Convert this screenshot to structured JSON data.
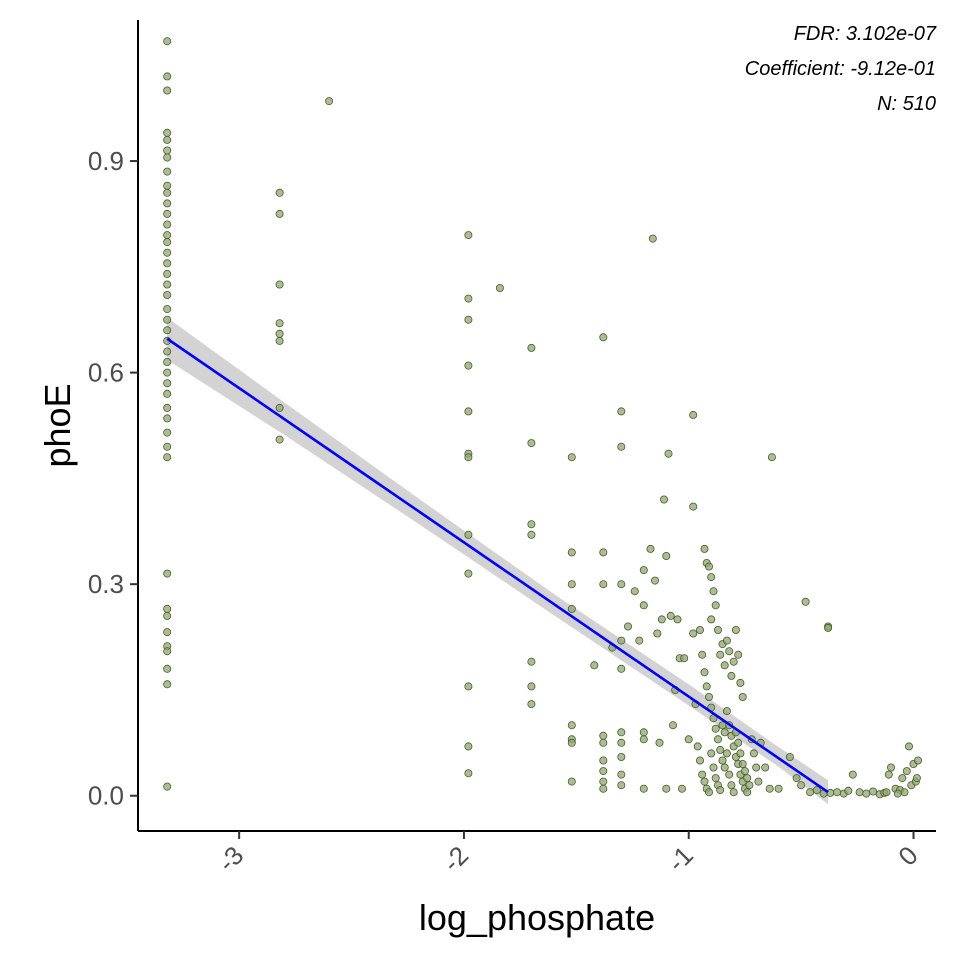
{
  "chart_data": {
    "type": "scatter",
    "xlabel": "log_phosphate",
    "ylabel": "phoE",
    "xlim": [
      -3.45,
      0.1
    ],
    "ylim": [
      -0.05,
      1.1
    ],
    "x_ticks": [
      -3,
      -2,
      -1,
      0
    ],
    "x_tick_labels": [
      "-3",
      "-2",
      "-1",
      "0"
    ],
    "y_ticks": [
      0.0,
      0.3,
      0.6,
      0.9
    ],
    "y_tick_labels": [
      "0.0",
      "0.3",
      "0.6",
      "0.9"
    ],
    "grid": false,
    "annotations": [
      "FDR: 3.102e-07",
      "Coefficient: -9.12e-01",
      "N: 510"
    ],
    "colors": {
      "point_fill": "#8fa86f",
      "point_stroke": "#4a5a2e",
      "fit_line": "#0000ff",
      "ribbon": "#c8c8c8",
      "axis": "#000000"
    },
    "fit_line": {
      "x": [
        -3.32,
        -0.38
      ],
      "y": [
        0.648,
        0.005
      ]
    },
    "ribbon": {
      "x": [
        -3.32,
        -2.8,
        -2.2,
        -1.6,
        -1.0,
        -0.6,
        -0.38
      ],
      "lower": [
        0.618,
        0.512,
        0.385,
        0.256,
        0.128,
        0.041,
        -0.012
      ],
      "upper": [
        0.678,
        0.558,
        0.421,
        0.286,
        0.158,
        0.069,
        0.022
      ]
    },
    "points": [
      {
        "x": -3.32,
        "y": 1.07
      },
      {
        "x": -3.32,
        "y": 1.02
      },
      {
        "x": -3.32,
        "y": 1.0
      },
      {
        "x": -3.32,
        "y": 0.94
      },
      {
        "x": -3.32,
        "y": 0.93
      },
      {
        "x": -3.32,
        "y": 0.915
      },
      {
        "x": -3.32,
        "y": 0.905
      },
      {
        "x": -3.32,
        "y": 0.885
      },
      {
        "x": -3.32,
        "y": 0.865
      },
      {
        "x": -3.32,
        "y": 0.855
      },
      {
        "x": -3.32,
        "y": 0.84
      },
      {
        "x": -3.32,
        "y": 0.825
      },
      {
        "x": -3.32,
        "y": 0.81
      },
      {
        "x": -3.32,
        "y": 0.795
      },
      {
        "x": -3.32,
        "y": 0.785
      },
      {
        "x": -3.32,
        "y": 0.77
      },
      {
        "x": -3.32,
        "y": 0.755
      },
      {
        "x": -3.32,
        "y": 0.74
      },
      {
        "x": -3.32,
        "y": 0.725
      },
      {
        "x": -3.32,
        "y": 0.71
      },
      {
        "x": -3.32,
        "y": 0.69
      },
      {
        "x": -3.32,
        "y": 0.675
      },
      {
        "x": -3.32,
        "y": 0.66
      },
      {
        "x": -3.32,
        "y": 0.645
      },
      {
        "x": -3.32,
        "y": 0.63
      },
      {
        "x": -3.32,
        "y": 0.615
      },
      {
        "x": -3.32,
        "y": 0.6
      },
      {
        "x": -3.32,
        "y": 0.585
      },
      {
        "x": -3.32,
        "y": 0.57
      },
      {
        "x": -3.32,
        "y": 0.55
      },
      {
        "x": -3.32,
        "y": 0.535
      },
      {
        "x": -3.32,
        "y": 0.515
      },
      {
        "x": -3.32,
        "y": 0.495
      },
      {
        "x": -3.32,
        "y": 0.48
      },
      {
        "x": -3.32,
        "y": 0.315
      },
      {
        "x": -3.32,
        "y": 0.265
      },
      {
        "x": -3.32,
        "y": 0.255
      },
      {
        "x": -3.32,
        "y": 0.232
      },
      {
        "x": -3.32,
        "y": 0.212
      },
      {
        "x": -3.32,
        "y": 0.205
      },
      {
        "x": -3.32,
        "y": 0.18
      },
      {
        "x": -3.32,
        "y": 0.158
      },
      {
        "x": -3.32,
        "y": 0.013
      },
      {
        "x": -2.82,
        "y": 0.855
      },
      {
        "x": -2.82,
        "y": 0.825
      },
      {
        "x": -2.82,
        "y": 0.725
      },
      {
        "x": -2.82,
        "y": 0.67
      },
      {
        "x": -2.82,
        "y": 0.655
      },
      {
        "x": -2.82,
        "y": 0.645
      },
      {
        "x": -2.82,
        "y": 0.55
      },
      {
        "x": -2.82,
        "y": 0.505
      },
      {
        "x": -2.6,
        "y": 0.985
      },
      {
        "x": -1.98,
        "y": 0.795
      },
      {
        "x": -1.98,
        "y": 0.705
      },
      {
        "x": -1.98,
        "y": 0.675
      },
      {
        "x": -1.98,
        "y": 0.61
      },
      {
        "x": -1.98,
        "y": 0.545
      },
      {
        "x": -1.98,
        "y": 0.485
      },
      {
        "x": -1.98,
        "y": 0.48
      },
      {
        "x": -1.98,
        "y": 0.37
      },
      {
        "x": -1.98,
        "y": 0.315
      },
      {
        "x": -1.98,
        "y": 0.155
      },
      {
        "x": -1.98,
        "y": 0.07
      },
      {
        "x": -1.98,
        "y": 0.032
      },
      {
        "x": -1.84,
        "y": 0.72
      },
      {
        "x": -1.7,
        "y": 0.635
      },
      {
        "x": -1.7,
        "y": 0.5
      },
      {
        "x": -1.7,
        "y": 0.385
      },
      {
        "x": -1.7,
        "y": 0.37
      },
      {
        "x": -1.7,
        "y": 0.19
      },
      {
        "x": -1.7,
        "y": 0.155
      },
      {
        "x": -1.7,
        "y": 0.13
      },
      {
        "x": -1.52,
        "y": 0.345
      },
      {
        "x": -1.52,
        "y": 0.3
      },
      {
        "x": -1.52,
        "y": 0.265
      },
      {
        "x": -1.52,
        "y": 0.1
      },
      {
        "x": -1.52,
        "y": 0.08
      },
      {
        "x": -1.52,
        "y": 0.075
      },
      {
        "x": -1.52,
        "y": 0.02
      },
      {
        "x": -1.52,
        "y": 0.48
      },
      {
        "x": -1.42,
        "y": 0.185
      },
      {
        "x": -1.38,
        "y": 0.65
      },
      {
        "x": -1.38,
        "y": 0.345
      },
      {
        "x": -1.38,
        "y": 0.3
      },
      {
        "x": -1.38,
        "y": 0.085
      },
      {
        "x": -1.38,
        "y": 0.075
      },
      {
        "x": -1.38,
        "y": 0.05
      },
      {
        "x": -1.38,
        "y": 0.035
      },
      {
        "x": -1.38,
        "y": 0.02
      },
      {
        "x": -1.38,
        "y": 0.01
      },
      {
        "x": -1.34,
        "y": 0.21
      },
      {
        "x": -1.3,
        "y": 0.545
      },
      {
        "x": -1.3,
        "y": 0.495
      },
      {
        "x": -1.3,
        "y": 0.3
      },
      {
        "x": -1.3,
        "y": 0.22
      },
      {
        "x": -1.3,
        "y": 0.18
      },
      {
        "x": -1.3,
        "y": 0.09
      },
      {
        "x": -1.3,
        "y": 0.075
      },
      {
        "x": -1.3,
        "y": 0.055
      },
      {
        "x": -1.3,
        "y": 0.03
      },
      {
        "x": -1.3,
        "y": 0.015
      },
      {
        "x": -1.27,
        "y": 0.24
      },
      {
        "x": -1.24,
        "y": 0.29
      },
      {
        "x": -1.22,
        "y": 0.22
      },
      {
        "x": -1.2,
        "y": 0.32
      },
      {
        "x": -1.2,
        "y": 0.27
      },
      {
        "x": -1.2,
        "y": 0.09
      },
      {
        "x": -1.2,
        "y": 0.08
      },
      {
        "x": -1.2,
        "y": 0.01
      },
      {
        "x": -1.17,
        "y": 0.35
      },
      {
        "x": -1.16,
        "y": 0.79
      },
      {
        "x": -1.15,
        "y": 0.305
      },
      {
        "x": -1.14,
        "y": 0.23
      },
      {
        "x": -1.13,
        "y": 0.075
      },
      {
        "x": -1.12,
        "y": 0.25
      },
      {
        "x": -1.11,
        "y": 0.42
      },
      {
        "x": -1.1,
        "y": 0.34
      },
      {
        "x": -1.09,
        "y": 0.485
      },
      {
        "x": -1.1,
        "y": 0.01
      },
      {
        "x": -1.08,
        "y": 0.255
      },
      {
        "x": -1.07,
        "y": 0.1
      },
      {
        "x": -1.06,
        "y": 0.15
      },
      {
        "x": -1.05,
        "y": 0.25
      },
      {
        "x": -1.04,
        "y": 0.195
      },
      {
        "x": -1.03,
        "y": 0.01
      },
      {
        "x": -1.02,
        "y": 0.195
      },
      {
        "x": -1.0,
        "y": 0.08
      },
      {
        "x": -0.98,
        "y": 0.54
      },
      {
        "x": -0.98,
        "y": 0.41
      },
      {
        "x": -0.98,
        "y": 0.23
      },
      {
        "x": -0.97,
        "y": 0.13
      },
      {
        "x": -0.96,
        "y": 0.07
      },
      {
        "x": -0.95,
        "y": 0.235
      },
      {
        "x": -0.94,
        "y": 0.2
      },
      {
        "x": -0.93,
        "y": 0.35
      },
      {
        "x": -0.92,
        "y": 0.33
      },
      {
        "x": -0.91,
        "y": 0.325
      },
      {
        "x": -0.9,
        "y": 0.31
      },
      {
        "x": -0.9,
        "y": 0.25
      },
      {
        "x": -0.89,
        "y": 0.29
      },
      {
        "x": -0.88,
        "y": 0.27
      },
      {
        "x": -0.87,
        "y": 0.235
      },
      {
        "x": -0.86,
        "y": 0.2
      },
      {
        "x": -0.85,
        "y": 0.215
      },
      {
        "x": -0.84,
        "y": 0.185
      },
      {
        "x": -0.83,
        "y": 0.22
      },
      {
        "x": -0.82,
        "y": 0.205
      },
      {
        "x": -0.81,
        "y": 0.17
      },
      {
        "x": -0.8,
        "y": 0.19
      },
      {
        "x": -0.79,
        "y": 0.235
      },
      {
        "x": -0.78,
        "y": 0.2
      },
      {
        "x": -0.77,
        "y": 0.16
      },
      {
        "x": -0.76,
        "y": 0.14
      },
      {
        "x": -0.93,
        "y": 0.175
      },
      {
        "x": -0.92,
        "y": 0.155
      },
      {
        "x": -0.91,
        "y": 0.14
      },
      {
        "x": -0.9,
        "y": 0.125
      },
      {
        "x": -0.89,
        "y": 0.11
      },
      {
        "x": -0.88,
        "y": 0.095
      },
      {
        "x": -0.87,
        "y": 0.08
      },
      {
        "x": -0.86,
        "y": 0.065
      },
      {
        "x": -0.85,
        "y": 0.05
      },
      {
        "x": -0.84,
        "y": 0.04
      },
      {
        "x": -0.83,
        "y": 0.12
      },
      {
        "x": -0.82,
        "y": 0.1
      },
      {
        "x": -0.81,
        "y": 0.085
      },
      {
        "x": -0.8,
        "y": 0.07
      },
      {
        "x": -0.79,
        "y": 0.055
      },
      {
        "x": -0.78,
        "y": 0.045
      },
      {
        "x": -0.77,
        "y": 0.03
      },
      {
        "x": -0.76,
        "y": 0.02
      },
      {
        "x": -0.75,
        "y": 0.01
      },
      {
        "x": -0.74,
        "y": 0.005
      },
      {
        "x": -0.95,
        "y": 0.05
      },
      {
        "x": -0.94,
        "y": 0.03
      },
      {
        "x": -0.93,
        "y": 0.02
      },
      {
        "x": -0.92,
        "y": 0.01
      },
      {
        "x": -0.91,
        "y": 0.005
      },
      {
        "x": -0.9,
        "y": 0.06
      },
      {
        "x": -0.89,
        "y": 0.04
      },
      {
        "x": -0.88,
        "y": 0.025
      },
      {
        "x": -0.87,
        "y": 0.015
      },
      {
        "x": -0.86,
        "y": 0.008
      },
      {
        "x": -0.85,
        "y": 0.1
      },
      {
        "x": -0.84,
        "y": 0.09
      },
      {
        "x": -0.83,
        "y": 0.06
      },
      {
        "x": -0.82,
        "y": 0.03
      },
      {
        "x": -0.81,
        "y": 0.015
      },
      {
        "x": -0.8,
        "y": 0.005
      },
      {
        "x": -0.79,
        "y": 0.09
      },
      {
        "x": -0.78,
        "y": 0.075
      },
      {
        "x": -0.77,
        "y": 0.06
      },
      {
        "x": -0.76,
        "y": 0.045
      },
      {
        "x": -0.75,
        "y": 0.035
      },
      {
        "x": -0.74,
        "y": 0.025
      },
      {
        "x": -0.73,
        "y": 0.015
      },
      {
        "x": -0.72,
        "y": 0.08
      },
      {
        "x": -0.71,
        "y": 0.06
      },
      {
        "x": -0.7,
        "y": 0.04
      },
      {
        "x": -0.69,
        "y": 0.02
      },
      {
        "x": -0.68,
        "y": 0.075
      },
      {
        "x": -0.66,
        "y": 0.04
      },
      {
        "x": -0.64,
        "y": 0.01
      },
      {
        "x": -0.63,
        "y": 0.48
      },
      {
        "x": -0.6,
        "y": 0.01
      },
      {
        "x": -0.55,
        "y": 0.055
      },
      {
        "x": -0.52,
        "y": 0.025
      },
      {
        "x": -0.5,
        "y": 0.015
      },
      {
        "x": -0.48,
        "y": 0.275
      },
      {
        "x": -0.46,
        "y": 0.005
      },
      {
        "x": -0.43,
        "y": 0.008
      },
      {
        "x": -0.4,
        "y": 0.003
      },
      {
        "x": -0.38,
        "y": 0.24
      },
      {
        "x": -0.38,
        "y": 0.238
      },
      {
        "x": -0.37,
        "y": 0.004
      },
      {
        "x": -0.34,
        "y": 0.005
      },
      {
        "x": -0.31,
        "y": 0.003
      },
      {
        "x": -0.29,
        "y": 0.007
      },
      {
        "x": -0.27,
        "y": 0.03
      },
      {
        "x": -0.24,
        "y": 0.005
      },
      {
        "x": -0.21,
        "y": 0.003
      },
      {
        "x": -0.18,
        "y": 0.006
      },
      {
        "x": -0.15,
        "y": 0.002
      },
      {
        "x": -0.13,
        "y": 0.004
      },
      {
        "x": -0.11,
        "y": 0.03
      },
      {
        "x": -0.1,
        "y": 0.04
      },
      {
        "x": -0.08,
        "y": 0.01
      },
      {
        "x": -0.06,
        "y": 0.008
      },
      {
        "x": -0.05,
        "y": 0.025
      },
      {
        "x": -0.04,
        "y": 0.005
      },
      {
        "x": -0.03,
        "y": 0.035
      },
      {
        "x": -0.02,
        "y": 0.07
      },
      {
        "x": -0.01,
        "y": 0.015
      },
      {
        "x": 0.0,
        "y": 0.045
      },
      {
        "x": 0.01,
        "y": 0.02
      },
      {
        "x": 0.02,
        "y": 0.05
      },
      {
        "x": 0.015,
        "y": 0.025
      },
      {
        "x": -0.07,
        "y": 0.003
      },
      {
        "x": -0.12,
        "y": 0.005
      }
    ]
  }
}
